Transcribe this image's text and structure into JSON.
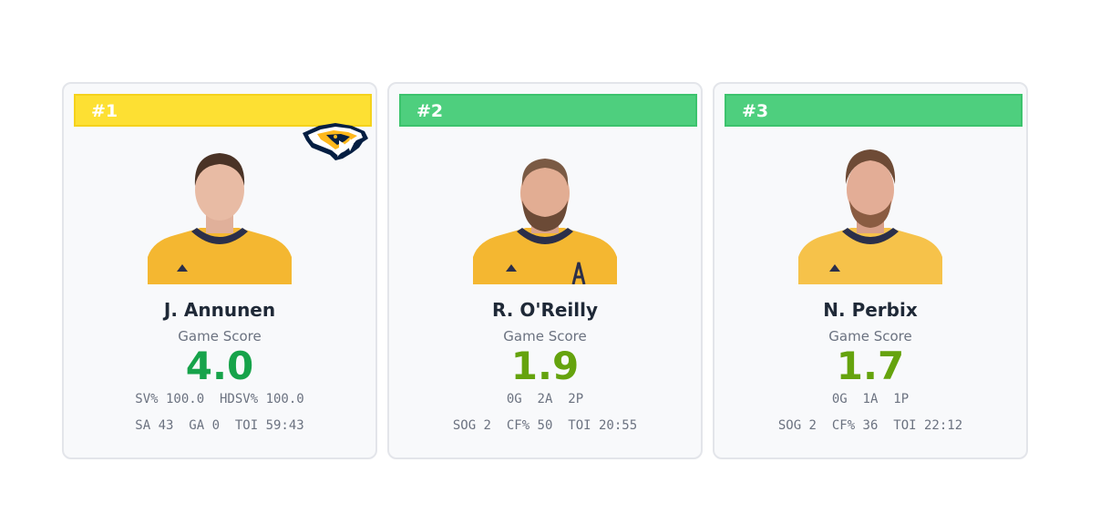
{
  "cards": [
    {
      "rank": "#1",
      "rank_color": "#fde033",
      "rank_border": "#f5d21c",
      "name": "J. Annunen",
      "score_label": "Game Score",
      "score": "4.0",
      "score_color": "#16a34a",
      "stats_line1": "SV% 100.0  HDSV% 100.0",
      "stats_line2": "SA 43  GA 0  TOI 59:43",
      "show_team_logo": true
    },
    {
      "rank": "#2",
      "rank_color": "#4ecf7e",
      "rank_border": "#3cc36d",
      "name": "R. O'Reilly",
      "score_label": "Game Score",
      "score": "1.9",
      "score_color": "#65a30d",
      "stats_line1": "0G  2A  2P",
      "stats_line2": "SOG 2  CF% 50  TOI 20:55",
      "show_team_logo": false
    },
    {
      "rank": "#3",
      "rank_color": "#4ecf7e",
      "rank_border": "#3cc36d",
      "name": "N. Perbix",
      "score_label": "Game Score",
      "score": "1.7",
      "score_color": "#65a30d",
      "stats_line1": "0G  1A  1P",
      "stats_line2": "SOG 2  CF% 36  TOI 22:12",
      "show_team_logo": false
    }
  ],
  "colors": {
    "jersey": "#f4b731",
    "jersey_trim": "#2b2f4a",
    "team_navy": "#041e42",
    "team_gold": "#ffb81c"
  },
  "icons": [
    "predators-logo-icon",
    "player-headshot-icon"
  ]
}
